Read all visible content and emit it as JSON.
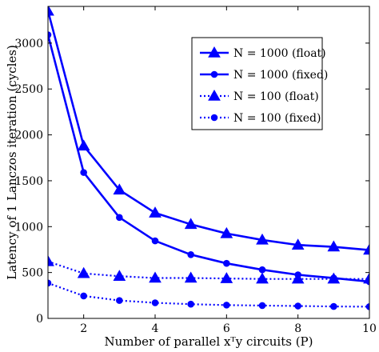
{
  "chart_data": {
    "type": "line",
    "xlabel": "Number of parallel xᵀy circuits (P)",
    "ylabel": "Latency of 1 Lanczos iteration (cycles)",
    "xlim": [
      1,
      10
    ],
    "ylim": [
      0,
      3400
    ],
    "xticks": [
      2,
      4,
      6,
      8,
      10
    ],
    "yticks": [
      0,
      500,
      1000,
      1500,
      2000,
      2500,
      3000
    ],
    "grid": false,
    "legend_position": "top-right",
    "x": [
      1,
      2,
      3,
      4,
      5,
      6,
      7,
      8,
      9,
      10
    ],
    "series": [
      {
        "name": "N = 1000 (float)",
        "values": [
          3350,
          1880,
          1400,
          1150,
          1025,
          925,
          855,
          800,
          780,
          745
        ],
        "color": "#0000ff",
        "line": "solid",
        "marker": "triangle"
      },
      {
        "name": "N = 1000 (fixed)",
        "values": [
          3090,
          1590,
          1100,
          845,
          695,
          600,
          530,
          475,
          440,
          400
        ],
        "color": "#0000ff",
        "line": "solid",
        "marker": "circle"
      },
      {
        "name": "N = 100 (float)",
        "values": [
          620,
          490,
          460,
          440,
          440,
          435,
          430,
          430,
          430,
          430
        ],
        "color": "#0000ff",
        "line": "dotted",
        "marker": "triangle"
      },
      {
        "name": "N = 100 (fixed)",
        "values": [
          385,
          245,
          195,
          170,
          155,
          145,
          140,
          135,
          130,
          128
        ],
        "color": "#0000ff",
        "line": "dotted",
        "marker": "circle"
      }
    ]
  }
}
